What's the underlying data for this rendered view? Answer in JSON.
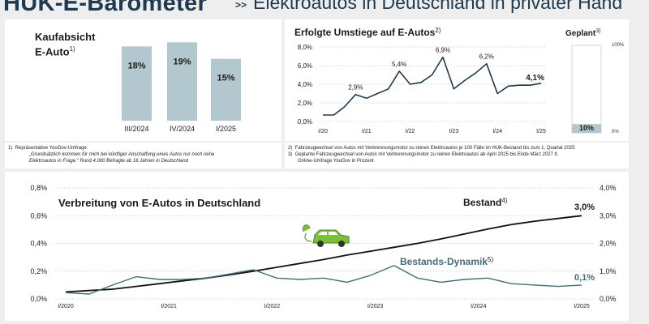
{
  "header": {
    "brand": "HUK-E-Barometer",
    "separator": ">>",
    "subtitle": "Elektroautos in Deutschland in privater Hand"
  },
  "kaufabsicht": {
    "title": "Kaufabsicht E-Auto",
    "title_line1": "Kaufabsicht",
    "title_line2": "E-Auto",
    "sup": "1)",
    "note_marker": "1)",
    "note_line1": "Repräsentative YouGov-Umfrage:",
    "note_line2": "„Grundsätzlich kommen für mich bei künftiger Anschaffung eines Autos nur noch reine",
    "note_line3": "Elektroautos in Frage.\" Rund 4.000 Befragte ab 16 Jahren in Deutschland"
  },
  "umstiege": {
    "title": "Erfolgte Umstiege auf E-Autos",
    "sup": "2)",
    "geplant_title": "Geplant",
    "geplant_sup": "3)",
    "geplant_top": "100%",
    "geplant_bottom": "0%",
    "geplant_value_label": "10%",
    "note2_marker": "2)",
    "note2": "Fahrzeugwechsel von Autos mit Verbrennungsmotor zu reinen Elektroautos je 100 Fälle im HUK-Bestand bis zum 1. Quartal 2025",
    "note3_marker": "3)",
    "note3_line1": "Geplante Fahrzeugwechsel von Autos mit Verbrennungsmotor zu reinen Elektroautos ab April 2025 bis Ende März 2027 lt.",
    "note3_line2": "Online-Umfrage YouGov in Prozent"
  },
  "verbreitung": {
    "title": "Verbreitung von E-Autos in Deutschland",
    "bestand_label": "Bestand",
    "bestand_sup": "4)",
    "dynamik_label": "Bestands-Dynamik",
    "dynamik_sup": "5)",
    "bestand_end_label": "3,0%",
    "dynamik_end_label": "0,1%"
  },
  "colors": {
    "navy": "#1e3a4f",
    "bar": "#b3c8ce",
    "teal": "#3f6f78",
    "car": "#7bbf3a"
  },
  "chart_data": [
    {
      "type": "bar",
      "title": "Kaufabsicht E-Auto",
      "categories": [
        "III/2024",
        "IV/2024",
        "I/2025"
      ],
      "values": [
        18,
        19,
        15
      ],
      "value_labels": [
        "18%",
        "19%",
        "15%"
      ],
      "ylim": [
        0,
        22
      ]
    },
    {
      "type": "line",
      "title": "Erfolgte Umstiege auf E-Autos",
      "ylim": [
        0,
        8
      ],
      "y_ticks": [
        0,
        2,
        4,
        6,
        8
      ],
      "y_tick_labels": [
        "0,0%",
        "2,0%",
        "4,0%",
        "6,0%",
        "8,0%"
      ],
      "x_tick_labels": [
        "I/20",
        "I/21",
        "I/22",
        "I/23",
        "I/24",
        "I/25"
      ],
      "x_tick_positions": [
        0,
        4,
        8,
        12,
        16,
        20
      ],
      "values": [
        0.7,
        0.7,
        1.6,
        2.9,
        2.5,
        3.0,
        3.5,
        5.4,
        4.0,
        4.2,
        5.0,
        6.9,
        3.5,
        4.4,
        5.2,
        6.2,
        3.0,
        3.8,
        3.9,
        3.9,
        4.1
      ],
      "annotations": [
        {
          "index": 3,
          "label": "2,9%"
        },
        {
          "index": 7,
          "label": "5,4%"
        },
        {
          "index": 11,
          "label": "6,9%"
        },
        {
          "index": 15,
          "label": "6,2%"
        },
        {
          "index": 20,
          "label": "4,1%"
        }
      ]
    },
    {
      "type": "bar",
      "title": "Geplant",
      "categories": [
        "Geplant"
      ],
      "values": [
        10
      ],
      "ylim": [
        0,
        100
      ]
    },
    {
      "type": "line",
      "title": "Verbreitung von E-Autos in Deutschland",
      "x_tick_labels": [
        "I/2020",
        "I/2021",
        "I/2022",
        "I/2023",
        "I/2024",
        "I/2025"
      ],
      "x_tick_positions": [
        0,
        4,
        8,
        12,
        16,
        20
      ],
      "left_axis": {
        "ylim": [
          0,
          0.8
        ],
        "ticks": [
          0,
          0.2,
          0.4,
          0.6,
          0.8
        ],
        "labels": [
          "0,0%",
          "0,2%",
          "0,4%",
          "0,6%",
          "0,8%"
        ]
      },
      "right_axis": {
        "ylim": [
          0,
          4
        ],
        "ticks": [
          0,
          1,
          2,
          3,
          4
        ],
        "labels": [
          "0,0%",
          "1,0%",
          "2,0%",
          "3,0%",
          "4,0%"
        ]
      },
      "series": [
        {
          "name": "Bestand",
          "axis": "right",
          "values": [
            0.25,
            0.3,
            0.35,
            0.45,
            0.55,
            0.65,
            0.75,
            0.87,
            1.0,
            1.14,
            1.28,
            1.42,
            1.58,
            1.72,
            1.86,
            2.0,
            2.16,
            2.34,
            2.52,
            2.68,
            2.8,
            2.9,
            3.0
          ]
        },
        {
          "name": "Bestands-Dynamik",
          "axis": "left",
          "values": [
            0.045,
            0.035,
            0.1,
            0.16,
            0.14,
            0.14,
            0.15,
            0.18,
            0.21,
            0.15,
            0.14,
            0.15,
            0.12,
            0.17,
            0.24,
            0.15,
            0.12,
            0.14,
            0.15,
            0.11,
            0.1,
            0.09,
            0.1
          ]
        }
      ]
    }
  ]
}
